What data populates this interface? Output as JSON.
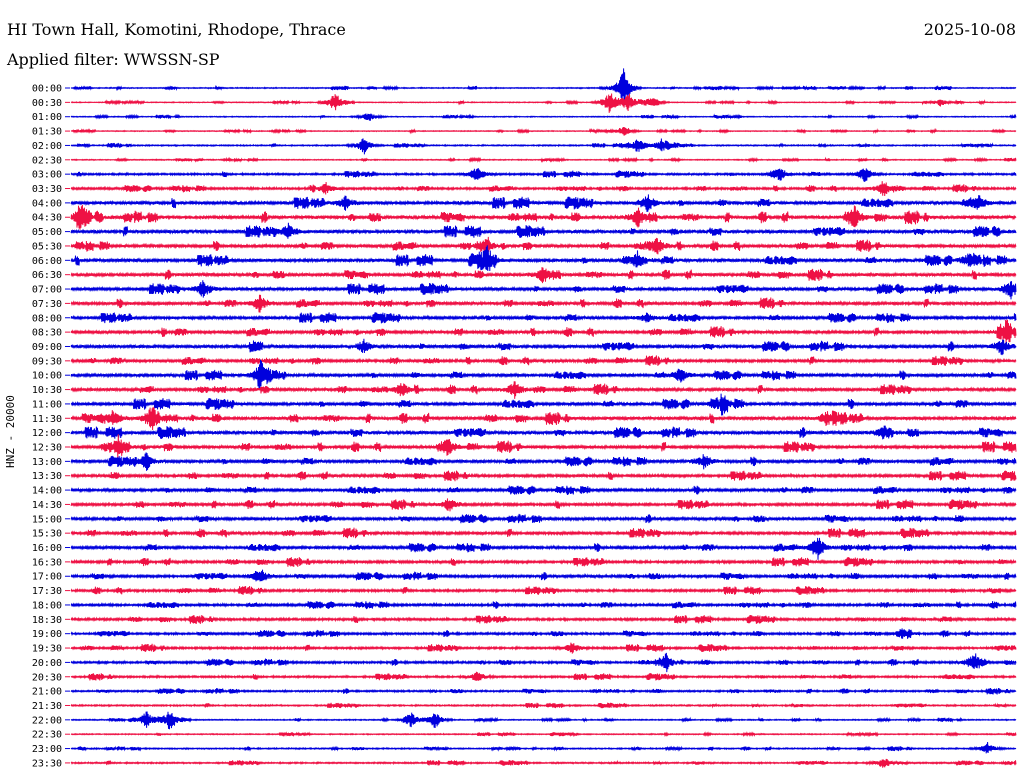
{
  "header": {
    "station": "HI Town Hall, Komotini, Rhodope, Thrace",
    "date": "2025-10-08",
    "filter": "Applied filter: WWSSN-SP",
    "channel": "HNZ - 20000"
  },
  "colors": {
    "trace_a": "#0000dd",
    "trace_b": "#ee1144",
    "text": "#000000",
    "background": "#ffffff"
  },
  "chart_data": {
    "type": "line",
    "title": "HI Town Hall, Komotini, Rhodope, Thrace",
    "subtitle": "Applied filter: WWSSN-SP",
    "ylabel": "HNZ - 20000",
    "xlabel": "",
    "row_labels": [
      "00:00",
      "00:30",
      "01:00",
      "01:30",
      "02:00",
      "02:30",
      "03:00",
      "03:30",
      "04:00",
      "04:30",
      "05:00",
      "05:30",
      "06:00",
      "06:30",
      "07:00",
      "07:30",
      "08:00",
      "08:30",
      "09:00",
      "09:30",
      "10:00",
      "10:30",
      "11:00",
      "11:30",
      "12:00",
      "12:30",
      "13:00",
      "13:30",
      "14:00",
      "14:30",
      "15:00",
      "15:30",
      "16:00",
      "16:30",
      "17:00",
      "17:30",
      "18:00",
      "18:30",
      "19:00",
      "19:30",
      "20:00",
      "20:30",
      "21:00",
      "21:30",
      "22:00",
      "22:30",
      "23:00",
      "23:30"
    ],
    "row_noise_level": [
      0.5,
      0.4,
      0.45,
      0.4,
      0.6,
      0.45,
      0.9,
      1.0,
      1.6,
      1.7,
      1.6,
      1.5,
      1.6,
      1.5,
      1.5,
      1.4,
      1.4,
      1.4,
      1.5,
      1.3,
      1.4,
      1.4,
      1.5,
      1.6,
      1.6,
      1.5,
      1.4,
      1.3,
      1.3,
      1.3,
      1.3,
      1.3,
      1.3,
      1.2,
      1.2,
      1.1,
      1.1,
      1.1,
      1.0,
      1.0,
      1.0,
      0.9,
      0.8,
      0.7,
      0.5,
      0.5,
      0.6,
      0.7
    ],
    "events": [
      {
        "row": 0,
        "x_frac": 0.585,
        "amp": 20
      },
      {
        "row": 1,
        "x_frac": 0.57,
        "amp": 12
      },
      {
        "row": 1,
        "x_frac": 0.59,
        "amp": 10
      },
      {
        "row": 1,
        "x_frac": 0.615,
        "amp": 6
      },
      {
        "row": 1,
        "x_frac": 0.28,
        "amp": 9
      },
      {
        "row": 1,
        "x_frac": 0.92,
        "amp": 4
      },
      {
        "row": 2,
        "x_frac": 0.315,
        "amp": 5
      },
      {
        "row": 3,
        "x_frac": 0.585,
        "amp": 6
      },
      {
        "row": 4,
        "x_frac": 0.31,
        "amp": 9
      },
      {
        "row": 4,
        "x_frac": 0.6,
        "amp": 8
      },
      {
        "row": 4,
        "x_frac": 0.625,
        "amp": 7
      },
      {
        "row": 6,
        "x_frac": 0.43,
        "amp": 9
      },
      {
        "row": 6,
        "x_frac": 0.75,
        "amp": 7
      },
      {
        "row": 6,
        "x_frac": 0.84,
        "amp": 8
      },
      {
        "row": 7,
        "x_frac": 0.27,
        "amp": 6
      },
      {
        "row": 7,
        "x_frac": 0.86,
        "amp": 9
      },
      {
        "row": 8,
        "x_frac": 0.29,
        "amp": 7
      },
      {
        "row": 8,
        "x_frac": 0.61,
        "amp": 9
      },
      {
        "row": 8,
        "x_frac": 0.96,
        "amp": 8
      },
      {
        "row": 9,
        "x_frac": 0.01,
        "amp": 10
      },
      {
        "row": 9,
        "x_frac": 0.6,
        "amp": 10
      },
      {
        "row": 9,
        "x_frac": 0.83,
        "amp": 10
      },
      {
        "row": 10,
        "x_frac": 0.23,
        "amp": 8
      },
      {
        "row": 11,
        "x_frac": 0.62,
        "amp": 10
      },
      {
        "row": 11,
        "x_frac": 0.44,
        "amp": 7
      },
      {
        "row": 12,
        "x_frac": 0.44,
        "amp": 11
      },
      {
        "row": 12,
        "x_frac": 0.6,
        "amp": 9
      },
      {
        "row": 12,
        "x_frac": 0.95,
        "amp": 7
      },
      {
        "row": 13,
        "x_frac": 0.5,
        "amp": 9
      },
      {
        "row": 14,
        "x_frac": 0.14,
        "amp": 9
      },
      {
        "row": 14,
        "x_frac": 0.995,
        "amp": 10
      },
      {
        "row": 15,
        "x_frac": 0.2,
        "amp": 9
      },
      {
        "row": 16,
        "x_frac": 0.61,
        "amp": 6
      },
      {
        "row": 17,
        "x_frac": 0.99,
        "amp": 9
      },
      {
        "row": 18,
        "x_frac": 0.31,
        "amp": 7
      },
      {
        "row": 18,
        "x_frac": 0.985,
        "amp": 8
      },
      {
        "row": 20,
        "x_frac": 0.2,
        "amp": 12
      },
      {
        "row": 20,
        "x_frac": 0.645,
        "amp": 8
      },
      {
        "row": 21,
        "x_frac": 0.35,
        "amp": 8
      },
      {
        "row": 21,
        "x_frac": 0.47,
        "amp": 9
      },
      {
        "row": 22,
        "x_frac": 0.69,
        "amp": 8
      },
      {
        "row": 23,
        "x_frac": 0.045,
        "amp": 9
      },
      {
        "row": 23,
        "x_frac": 0.085,
        "amp": 12
      },
      {
        "row": 23,
        "x_frac": 0.8,
        "amp": 8
      },
      {
        "row": 24,
        "x_frac": 0.86,
        "amp": 7
      },
      {
        "row": 25,
        "x_frac": 0.05,
        "amp": 10
      },
      {
        "row": 25,
        "x_frac": 0.4,
        "amp": 8
      },
      {
        "row": 26,
        "x_frac": 0.08,
        "amp": 9
      },
      {
        "row": 26,
        "x_frac": 0.67,
        "amp": 8
      },
      {
        "row": 29,
        "x_frac": 0.4,
        "amp": 7
      },
      {
        "row": 32,
        "x_frac": 0.79,
        "amp": 13
      },
      {
        "row": 34,
        "x_frac": 0.2,
        "amp": 9
      },
      {
        "row": 38,
        "x_frac": 0.88,
        "amp": 6
      },
      {
        "row": 39,
        "x_frac": 0.53,
        "amp": 6
      },
      {
        "row": 40,
        "x_frac": 0.63,
        "amp": 8
      },
      {
        "row": 40,
        "x_frac": 0.955,
        "amp": 10
      },
      {
        "row": 41,
        "x_frac": 0.43,
        "amp": 6
      },
      {
        "row": 44,
        "x_frac": 0.08,
        "amp": 9
      },
      {
        "row": 44,
        "x_frac": 0.105,
        "amp": 10
      },
      {
        "row": 44,
        "x_frac": 0.36,
        "amp": 7
      },
      {
        "row": 44,
        "x_frac": 0.385,
        "amp": 9
      },
      {
        "row": 46,
        "x_frac": 0.97,
        "amp": 6
      },
      {
        "row": 47,
        "x_frac": 0.86,
        "amp": 6
      }
    ],
    "grid": false,
    "legend": "none"
  }
}
